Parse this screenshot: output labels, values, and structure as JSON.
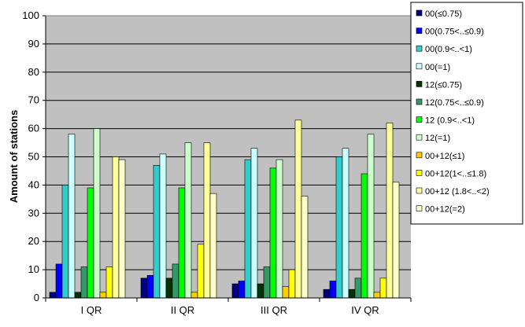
{
  "chart_data": {
    "type": "bar",
    "title": "",
    "xlabel": "",
    "ylabel": "Amount of stations",
    "ylim": [
      0,
      100
    ],
    "yticks": [
      0,
      10,
      20,
      30,
      40,
      50,
      60,
      70,
      80,
      90,
      100
    ],
    "grid": true,
    "legend_position": "right",
    "plot_background": "#c0c0c0",
    "categories": [
      "I QR",
      "II QR",
      "III QR",
      "IV QR"
    ],
    "series": [
      {
        "name": "00(≤0.75)",
        "color": "#000080",
        "values": [
          2,
          7,
          5,
          3
        ]
      },
      {
        "name": "00(0.75<..≤0.9)",
        "color": "#0000ff",
        "values": [
          12,
          8,
          6,
          6
        ]
      },
      {
        "name": "00(0.9<..<1)",
        "color": "#33cccc",
        "values": [
          40,
          47,
          49,
          50
        ]
      },
      {
        "name": "00(=1)",
        "color": "#ccffff",
        "values": [
          58,
          51,
          53,
          53
        ]
      },
      {
        "name": "12(≤0.75)",
        "color": "#003300",
        "values": [
          2,
          7,
          5,
          3
        ]
      },
      {
        "name": "12(0.75<..≤0.9)",
        "color": "#339966",
        "values": [
          11,
          12,
          11,
          7
        ]
      },
      {
        "name": "12 (0.9<..<1)",
        "color": "#00ff00",
        "values": [
          39,
          39,
          46,
          44
        ]
      },
      {
        "name": "12(=1)",
        "color": "#ccffcc",
        "values": [
          60,
          55,
          49,
          58
        ]
      },
      {
        "name": "00+12(≤1)",
        "color": "#ffcc00",
        "values": [
          2,
          2,
          4,
          2
        ]
      },
      {
        "name": "00+12(1<..≤1.8)",
        "color": "#ffff00",
        "values": [
          11,
          19,
          10,
          7
        ]
      },
      {
        "name": "00+12 (1.8<..<2)",
        "color": "#ffff99",
        "values": [
          50,
          55,
          63,
          62
        ]
      },
      {
        "name": "00+12(=2)",
        "color": "#ffffcc",
        "values": [
          49,
          37,
          36,
          41
        ]
      }
    ]
  }
}
